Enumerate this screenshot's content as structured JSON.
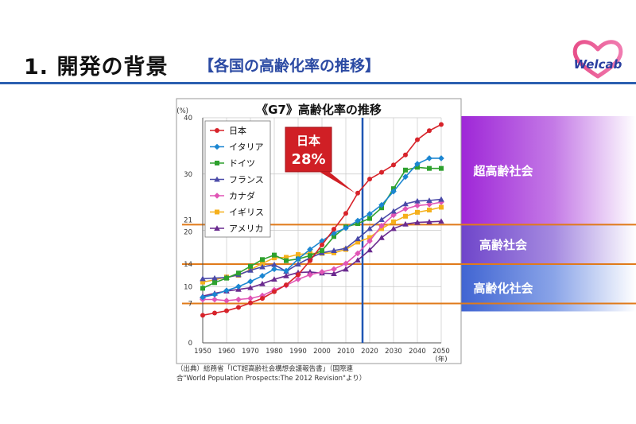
{
  "header": {
    "title": "1. 開発の背景",
    "subtitle": "【各国の高齢化率の推移】",
    "logo_text": "Welcab"
  },
  "colors": {
    "title_rule": "#2b5fb0",
    "threshold_line": "#e07a1a",
    "year_marker": "#1f56b4",
    "callout": "#d01f25",
    "band_top": "#a020d8"
  },
  "chart_data": {
    "type": "line",
    "title": "《G7》高齢化率の推移",
    "ylabel": "(%)",
    "xlabel": "(年)",
    "ylim": [
      0,
      40
    ],
    "xlim": [
      1950,
      2050
    ],
    "y_ticks": [
      0,
      7,
      10,
      14,
      20,
      21,
      30,
      40
    ],
    "x_ticks": [
      1950,
      1960,
      1970,
      1980,
      1990,
      2000,
      2010,
      2020,
      2030,
      2040,
      2050
    ],
    "threshold_lines": [
      7,
      14,
      21
    ],
    "marker_year": 2017,
    "x": [
      1950,
      1955,
      1960,
      1965,
      1970,
      1975,
      1980,
      1985,
      1990,
      1995,
      2000,
      2005,
      2010,
      2015,
      2020,
      2025,
      2030,
      2035,
      2040,
      2045,
      2050
    ],
    "series": [
      {
        "name": "日本",
        "color": "#d7232a",
        "marker": "circle",
        "values": [
          4.9,
          5.3,
          5.7,
          6.3,
          7.1,
          7.9,
          9.1,
          10.3,
          12.1,
          14.6,
          17.4,
          20.2,
          23.0,
          26.6,
          29.1,
          30.3,
          31.6,
          33.4,
          36.1,
          37.7,
          38.8
        ]
      },
      {
        "name": "イタリア",
        "color": "#1b86d1",
        "marker": "diamond",
        "values": [
          8.1,
          8.6,
          9.3,
          10.0,
          10.9,
          11.9,
          13.1,
          12.8,
          14.9,
          16.6,
          18.1,
          19.5,
          20.4,
          21.7,
          22.9,
          24.5,
          26.9,
          29.5,
          31.8,
          32.8,
          32.8
        ]
      },
      {
        "name": "ドイツ",
        "color": "#2ea12e",
        "marker": "square",
        "values": [
          9.7,
          10.7,
          11.5,
          12.4,
          13.6,
          14.8,
          15.6,
          14.6,
          14.9,
          15.5,
          16.4,
          18.9,
          20.6,
          21.2,
          22.1,
          24.0,
          27.4,
          30.7,
          31.2,
          31.0,
          31.0
        ]
      },
      {
        "name": "フランス",
        "color": "#4a4aa8",
        "marker": "triangle",
        "values": [
          11.4,
          11.5,
          11.6,
          12.1,
          12.9,
          13.5,
          13.9,
          12.7,
          14.0,
          15.1,
          16.0,
          16.4,
          16.8,
          18.5,
          20.3,
          21.9,
          23.4,
          24.7,
          25.2,
          25.3,
          25.5
        ]
      },
      {
        "name": "カナダ",
        "color": "#e055b5",
        "marker": "diamond",
        "values": [
          7.7,
          7.7,
          7.5,
          7.7,
          7.9,
          8.4,
          9.4,
          10.2,
          11.3,
          12.1,
          12.6,
          13.1,
          14.1,
          15.9,
          18.1,
          20.8,
          22.7,
          23.8,
          24.4,
          24.6,
          25.0
        ]
      },
      {
        "name": "イギリス",
        "color": "#f5b01c",
        "marker": "square",
        "values": [
          10.8,
          11.2,
          11.7,
          12.0,
          13.0,
          14.1,
          15.1,
          15.2,
          15.7,
          15.9,
          15.9,
          16.0,
          16.6,
          17.9,
          18.7,
          20.3,
          21.5,
          22.5,
          23.2,
          23.6,
          24.1
        ]
      },
      {
        "name": "アメリカ",
        "color": "#6a2a8f",
        "marker": "triangle",
        "values": [
          8.3,
          8.8,
          9.2,
          9.5,
          9.8,
          10.5,
          11.3,
          11.9,
          12.5,
          12.6,
          12.4,
          12.3,
          13.1,
          14.7,
          16.5,
          18.7,
          20.3,
          21.1,
          21.4,
          21.5,
          21.6
        ]
      }
    ],
    "callout": {
      "label": "日本",
      "value": "28%"
    },
    "bands": [
      {
        "label": "超高齢社会"
      },
      {
        "label": "高齢社会"
      },
      {
        "label": "高齢化社会"
      }
    ]
  },
  "source": {
    "line1": "（出典）総務省「ICT超高齢社会構想会議報告書」（国際連",
    "line2": "合\"World Population Prospects:The 2012 Revision\"より）"
  }
}
